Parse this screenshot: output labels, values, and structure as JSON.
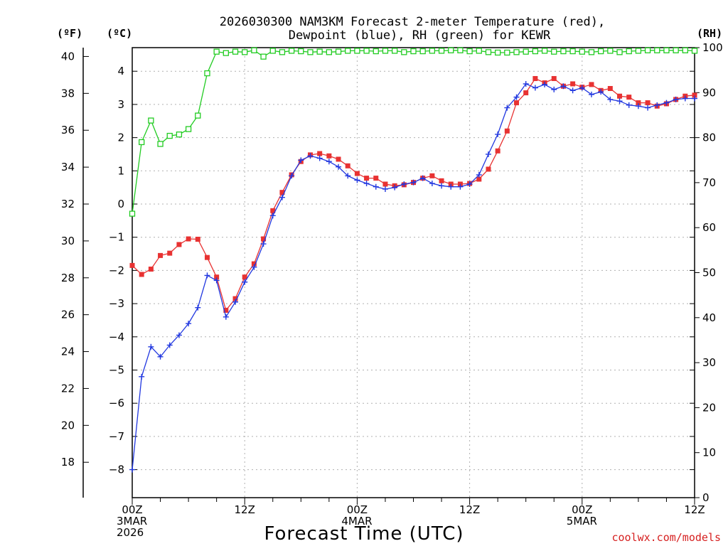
{
  "chart_data": {
    "type": "line",
    "title_line1": "2026030300 NAM3KM Forecast 2-meter Temperature (red),",
    "title_line2": "Dewpoint (blue), RH (green) for KEWR",
    "xlabel": "Forecast Time (UTC)",
    "unit_left_f": "(ºF)",
    "unit_left_c": "(ºC)",
    "unit_right": "(RH)",
    "watermark": "coolwx.com/models",
    "x_unit": "forecast hour",
    "xlim": [
      0,
      60
    ],
    "x_ticks": [
      {
        "hour": 0,
        "lines": [
          "00Z",
          "3MAR",
          "2026"
        ]
      },
      {
        "hour": 12,
        "lines": [
          "12Z"
        ]
      },
      {
        "hour": 24,
        "lines": [
          "00Z",
          "4MAR"
        ]
      },
      {
        "hour": 36,
        "lines": [
          "12Z"
        ]
      },
      {
        "hour": 48,
        "lines": [
          "00Z",
          "5MAR"
        ]
      },
      {
        "hour": 60,
        "lines": [
          "12Z"
        ]
      }
    ],
    "c_axis": {
      "ylim": [
        -8.844,
        4.711
      ],
      "ticks": [
        -8,
        -7,
        -6,
        -5,
        -4,
        -3,
        -2,
        -1,
        0,
        1,
        2,
        3,
        4
      ]
    },
    "f_axis": {
      "ticks": [
        18,
        20,
        22,
        24,
        26,
        28,
        30,
        32,
        34,
        36,
        38,
        40
      ]
    },
    "rh_axis": {
      "ylim": [
        0,
        100
      ],
      "ticks": [
        0,
        10,
        20,
        30,
        40,
        50,
        60,
        70,
        80,
        90,
        100
      ]
    },
    "series": [
      {
        "name": "2-meter Temperature",
        "color": "#e83232",
        "units": "degC",
        "x": [
          0,
          1,
          2,
          3,
          4,
          5,
          6,
          7,
          8,
          9,
          10,
          11,
          12,
          13,
          14,
          15,
          16,
          17,
          18,
          19,
          20,
          21,
          22,
          23,
          24,
          25,
          26,
          27,
          28,
          29,
          30,
          31,
          32,
          33,
          34,
          35,
          36,
          37,
          38,
          39,
          40,
          41,
          42,
          43,
          44,
          45,
          46,
          47,
          48,
          49,
          50,
          51,
          52,
          53,
          54,
          55,
          56,
          57,
          58,
          59,
          60
        ],
        "values": [
          -1.85,
          -2.12,
          -1.96,
          -1.55,
          -1.48,
          -1.22,
          -1.05,
          -1.06,
          -1.61,
          -2.2,
          -3.2,
          -2.85,
          -2.2,
          -1.8,
          -1.05,
          -0.2,
          0.35,
          0.88,
          1.28,
          1.48,
          1.52,
          1.45,
          1.35,
          1.15,
          0.92,
          0.78,
          0.78,
          0.6,
          0.55,
          0.58,
          0.65,
          0.78,
          0.85,
          0.7,
          0.6,
          0.6,
          0.62,
          0.75,
          1.05,
          1.6,
          2.2,
          3.05,
          3.35,
          3.78,
          3.65,
          3.78,
          3.55,
          3.62,
          3.52,
          3.6,
          3.42,
          3.48,
          3.25,
          3.22,
          3.05,
          3.05,
          2.95,
          3.02,
          3.15,
          3.25,
          3.28
        ]
      },
      {
        "name": "Dewpoint",
        "color": "#2238e0",
        "units": "degC",
        "x": [
          0,
          1,
          2,
          3,
          4,
          5,
          6,
          7,
          8,
          9,
          10,
          11,
          12,
          13,
          14,
          15,
          16,
          17,
          18,
          19,
          20,
          21,
          22,
          23,
          24,
          25,
          26,
          27,
          28,
          29,
          30,
          31,
          32,
          33,
          34,
          35,
          36,
          37,
          38,
          39,
          40,
          41,
          42,
          43,
          44,
          45,
          46,
          47,
          48,
          49,
          50,
          51,
          52,
          53,
          54,
          55,
          56,
          57,
          58,
          59,
          60
        ],
        "values": [
          -8.0,
          -5.2,
          -4.3,
          -4.6,
          -4.25,
          -3.95,
          -3.6,
          -3.12,
          -2.15,
          -2.3,
          -3.4,
          -2.95,
          -2.35,
          -1.9,
          -1.2,
          -0.35,
          0.2,
          0.85,
          1.32,
          1.45,
          1.38,
          1.28,
          1.12,
          0.85,
          0.72,
          0.62,
          0.52,
          0.45,
          0.5,
          0.6,
          0.65,
          0.78,
          0.62,
          0.55,
          0.52,
          0.52,
          0.6,
          0.88,
          1.5,
          2.1,
          2.9,
          3.22,
          3.62,
          3.5,
          3.6,
          3.45,
          3.55,
          3.42,
          3.5,
          3.3,
          3.38,
          3.15,
          3.1,
          2.98,
          2.95,
          2.9,
          2.98,
          3.05,
          3.15,
          3.18,
          3.18
        ]
      },
      {
        "name": "RH",
        "color": "#22cc22",
        "units": "percent",
        "x": [
          0,
          1,
          2,
          3,
          4,
          5,
          6,
          7,
          8,
          9,
          10,
          11,
          12,
          13,
          14,
          15,
          16,
          17,
          18,
          19,
          20,
          21,
          22,
          23,
          24,
          25,
          26,
          27,
          28,
          29,
          30,
          31,
          32,
          33,
          34,
          35,
          36,
          37,
          38,
          39,
          40,
          41,
          42,
          43,
          44,
          45,
          46,
          47,
          48,
          49,
          50,
          51,
          52,
          53,
          54,
          55,
          56,
          57,
          58,
          59,
          60
        ],
        "values": [
          63.1,
          79.0,
          83.8,
          78.6,
          80.4,
          80.7,
          81.9,
          84.9,
          94.3,
          99.1,
          98.8,
          99.1,
          99.0,
          99.4,
          98.0,
          99.3,
          99.0,
          99.3,
          99.2,
          99.0,
          99.1,
          99.0,
          99.1,
          99.3,
          99.3,
          99.3,
          99.2,
          99.3,
          99.3,
          99.0,
          99.2,
          99.2,
          99.3,
          99.3,
          99.4,
          99.4,
          99.2,
          99.3,
          99.0,
          98.9,
          98.9,
          99.0,
          99.1,
          99.2,
          99.3,
          99.1,
          99.2,
          99.2,
          99.1,
          99.0,
          99.2,
          99.3,
          99.0,
          99.2,
          99.3,
          99.4,
          99.4,
          99.4,
          99.4,
          99.4,
          99.3
        ]
      }
    ]
  }
}
